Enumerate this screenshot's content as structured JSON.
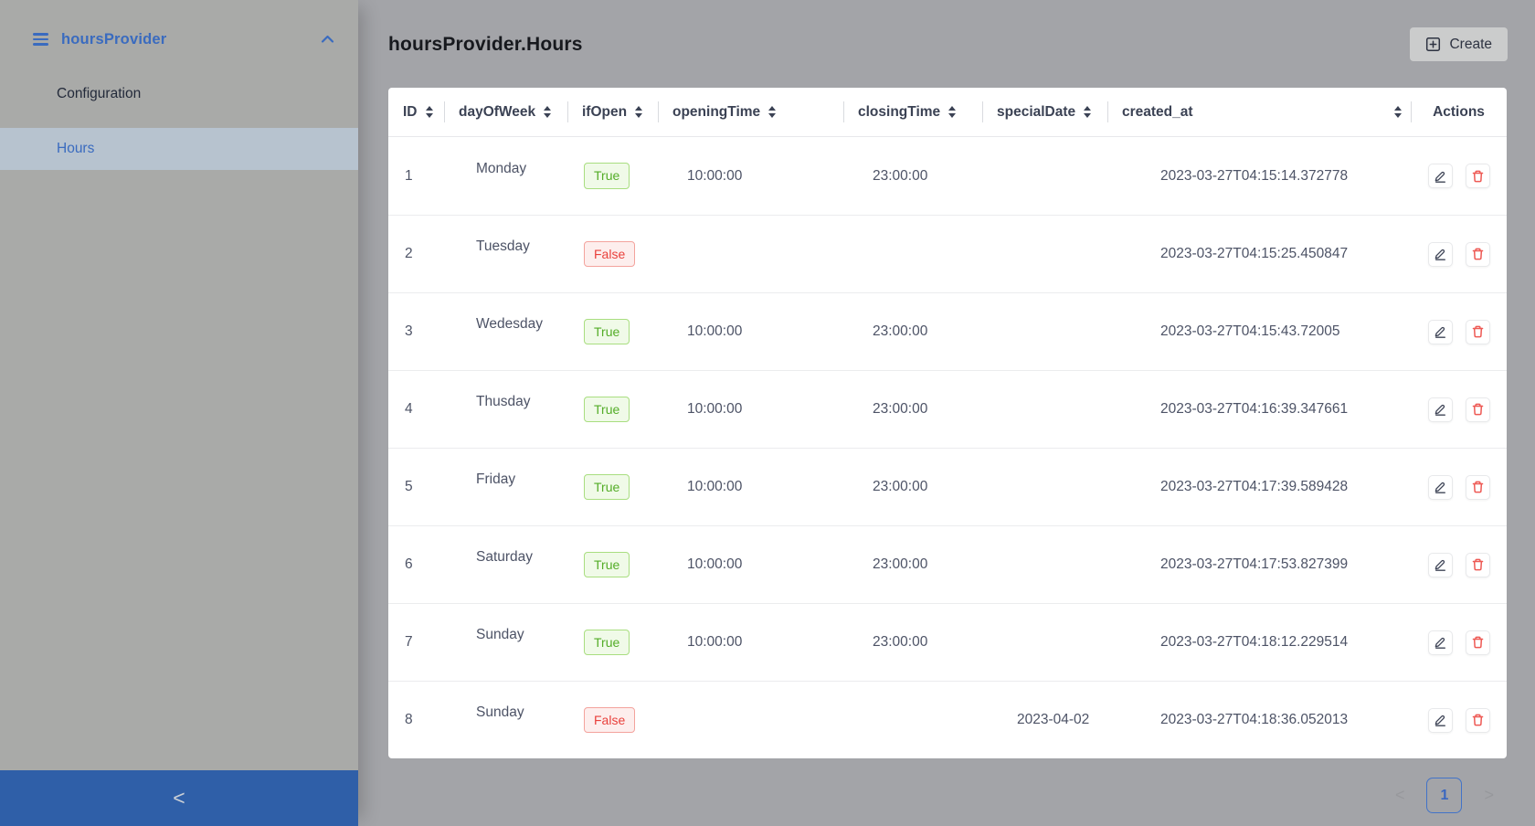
{
  "sidebar": {
    "app_title": "hoursProvider",
    "menu_items": [
      {
        "label": "Configuration",
        "active": false
      },
      {
        "label": "Hours",
        "active": true
      }
    ],
    "collapse_icon": "<"
  },
  "header": {
    "page_title": "hoursProvider.Hours",
    "create_button_label": "Create"
  },
  "table": {
    "columns": [
      {
        "key": "id",
        "label": "ID",
        "sortable": true
      },
      {
        "key": "dayOfWeek",
        "label": "dayOfWeek",
        "sortable": true
      },
      {
        "key": "ifOpen",
        "label": "ifOpen",
        "sortable": true
      },
      {
        "key": "openingTime",
        "label": "openingTime",
        "sortable": true
      },
      {
        "key": "closingTime",
        "label": "closingTime",
        "sortable": true
      },
      {
        "key": "specialDate",
        "label": "specialDate",
        "sortable": true
      },
      {
        "key": "created_at",
        "label": "created_at",
        "sortable": true
      },
      {
        "key": "actions",
        "label": "Actions",
        "sortable": false
      }
    ],
    "rows": [
      {
        "id": "1",
        "dayOfWeek": "Monday",
        "ifOpen": "True",
        "openingTime": "10:00:00",
        "closingTime": "23:00:00",
        "specialDate": "",
        "created_at": "2023-03-27T04:15:14.372778"
      },
      {
        "id": "2",
        "dayOfWeek": "Tuesday",
        "ifOpen": "False",
        "openingTime": "",
        "closingTime": "",
        "specialDate": "",
        "created_at": "2023-03-27T04:15:25.450847"
      },
      {
        "id": "3",
        "dayOfWeek": "Wedesday",
        "ifOpen": "True",
        "openingTime": "10:00:00",
        "closingTime": "23:00:00",
        "specialDate": "",
        "created_at": "2023-03-27T04:15:43.72005"
      },
      {
        "id": "4",
        "dayOfWeek": "Thusday",
        "ifOpen": "True",
        "openingTime": "10:00:00",
        "closingTime": "23:00:00",
        "specialDate": "",
        "created_at": "2023-03-27T04:16:39.347661"
      },
      {
        "id": "5",
        "dayOfWeek": "Friday",
        "ifOpen": "True",
        "openingTime": "10:00:00",
        "closingTime": "23:00:00",
        "specialDate": "",
        "created_at": "2023-03-27T04:17:39.589428"
      },
      {
        "id": "6",
        "dayOfWeek": "Saturday",
        "ifOpen": "True",
        "openingTime": "10:00:00",
        "closingTime": "23:00:00",
        "specialDate": "",
        "created_at": "2023-03-27T04:17:53.827399"
      },
      {
        "id": "7",
        "dayOfWeek": "Sunday",
        "ifOpen": "True",
        "openingTime": "10:00:00",
        "closingTime": "23:00:00",
        "specialDate": "",
        "created_at": "2023-03-27T04:18:12.229514"
      },
      {
        "id": "8",
        "dayOfWeek": "Sunday",
        "ifOpen": "False",
        "openingTime": "",
        "closingTime": "",
        "specialDate": "2023-04-02",
        "created_at": "2023-03-27T04:18:36.052013"
      }
    ]
  },
  "pagination": {
    "prev": "<",
    "current_page": "1",
    "next": ">"
  },
  "colors": {
    "accent_blue": "#3a6bbf",
    "bottom_bar_blue": "#2f5fa8",
    "selected_item_bg": "#b7c3cf",
    "true_green": "#54ad28",
    "false_red": "#e9413c",
    "delete_red": "#ee5a55",
    "page_bg": "#a3a4a8",
    "sidebar_bg": "#a9aaa8"
  }
}
